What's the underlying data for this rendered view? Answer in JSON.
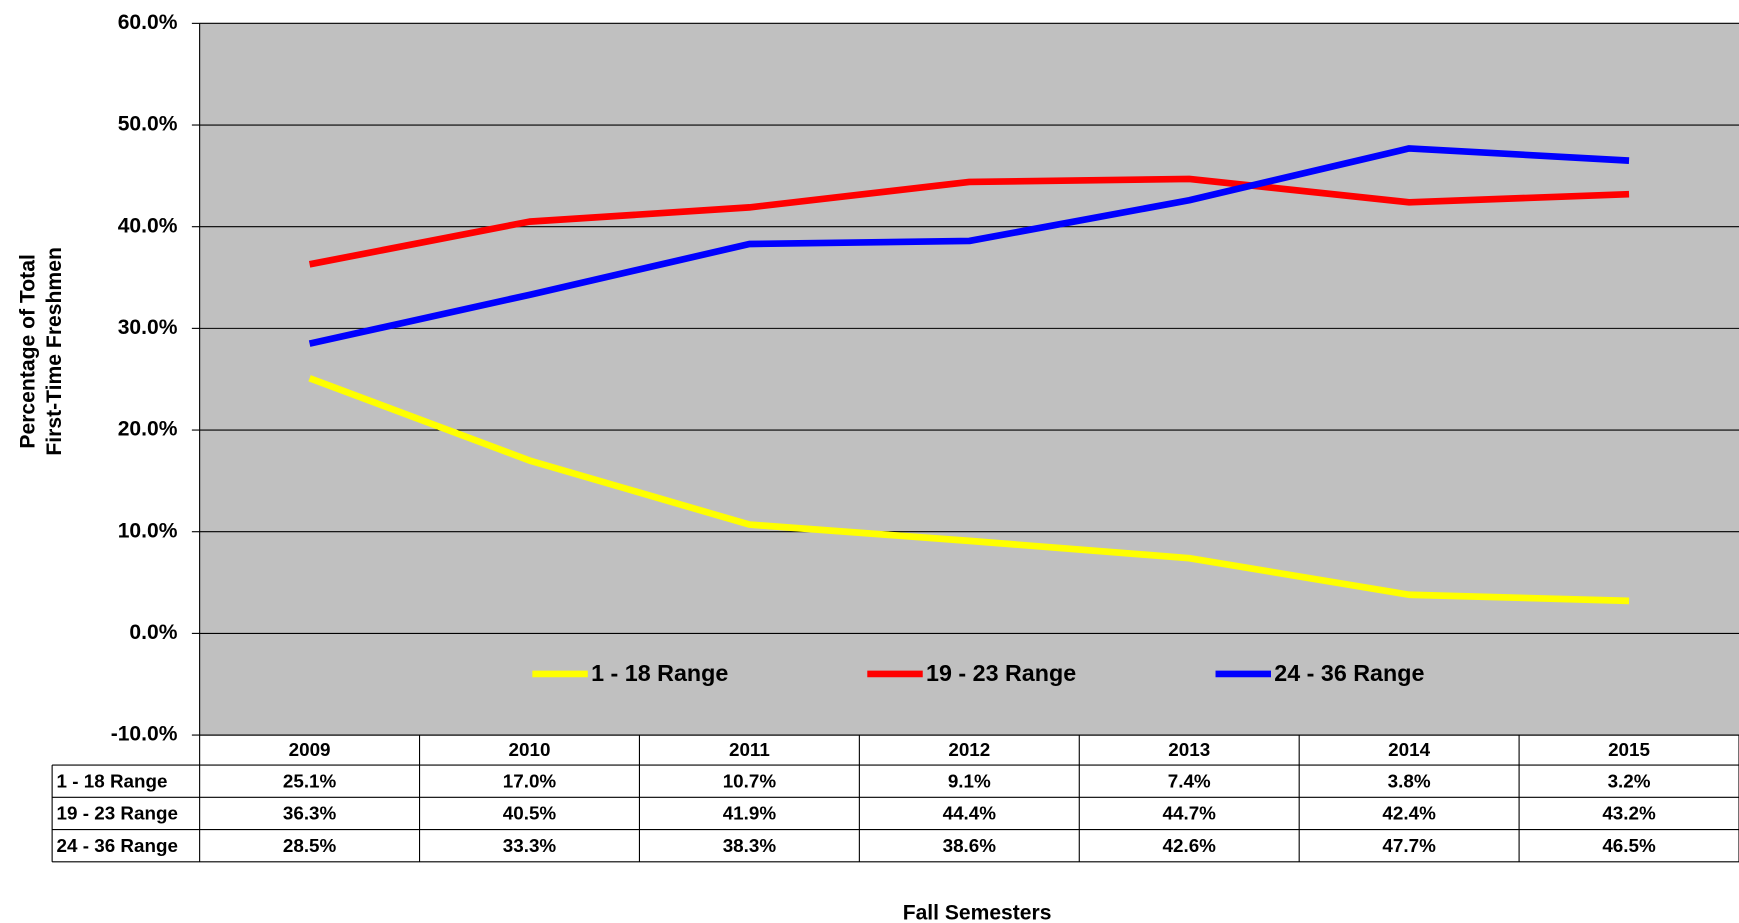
{
  "chart_data": {
    "type": "line",
    "x_label": "Fall Semesters",
    "y_label": [
      "Percentage of Total",
      "First-Time Freshmen"
    ],
    "categories": [
      "2009",
      "2010",
      "2011",
      "2012",
      "2013",
      "2014",
      "2015"
    ],
    "series": [
      {
        "name": "1 - 18 Range",
        "color": "#ffff00",
        "values": [
          25.1,
          17.0,
          10.7,
          9.1,
          7.4,
          3.8,
          3.2
        ],
        "value_labels": [
          "25.1%",
          "17.0%",
          "10.7%",
          "9.1%",
          "7.4%",
          "3.8%",
          "3.2%"
        ]
      },
      {
        "name": "19 - 23 Range",
        "color": "#ff0000",
        "values": [
          36.3,
          40.5,
          41.9,
          44.4,
          44.7,
          42.4,
          43.2
        ],
        "value_labels": [
          "36.3%",
          "40.5%",
          "41.9%",
          "44.4%",
          "44.7%",
          "42.4%",
          "43.2%"
        ]
      },
      {
        "name": "24 - 36 Range",
        "color": "#0000ff",
        "values": [
          28.5,
          33.3,
          38.3,
          38.6,
          42.6,
          47.7,
          46.5
        ],
        "value_labels": [
          "28.5%",
          "33.3%",
          "38.3%",
          "38.6%",
          "42.6%",
          "47.7%",
          "46.5%"
        ]
      }
    ],
    "ylim": [
      -10,
      60
    ],
    "yticks": [
      {
        "value": -10,
        "label": "-10.0%"
      },
      {
        "value": 0,
        "label": "0.0%"
      },
      {
        "value": 10,
        "label": "10.0%"
      },
      {
        "value": 20,
        "label": "20.0%"
      },
      {
        "value": 30,
        "label": "30.0%"
      },
      {
        "value": 40,
        "label": "40.0%"
      },
      {
        "value": 50,
        "label": "50.0%"
      },
      {
        "value": 60,
        "label": "60.0%"
      }
    ],
    "grid": true,
    "plot_background": "#c0c0c0"
  }
}
